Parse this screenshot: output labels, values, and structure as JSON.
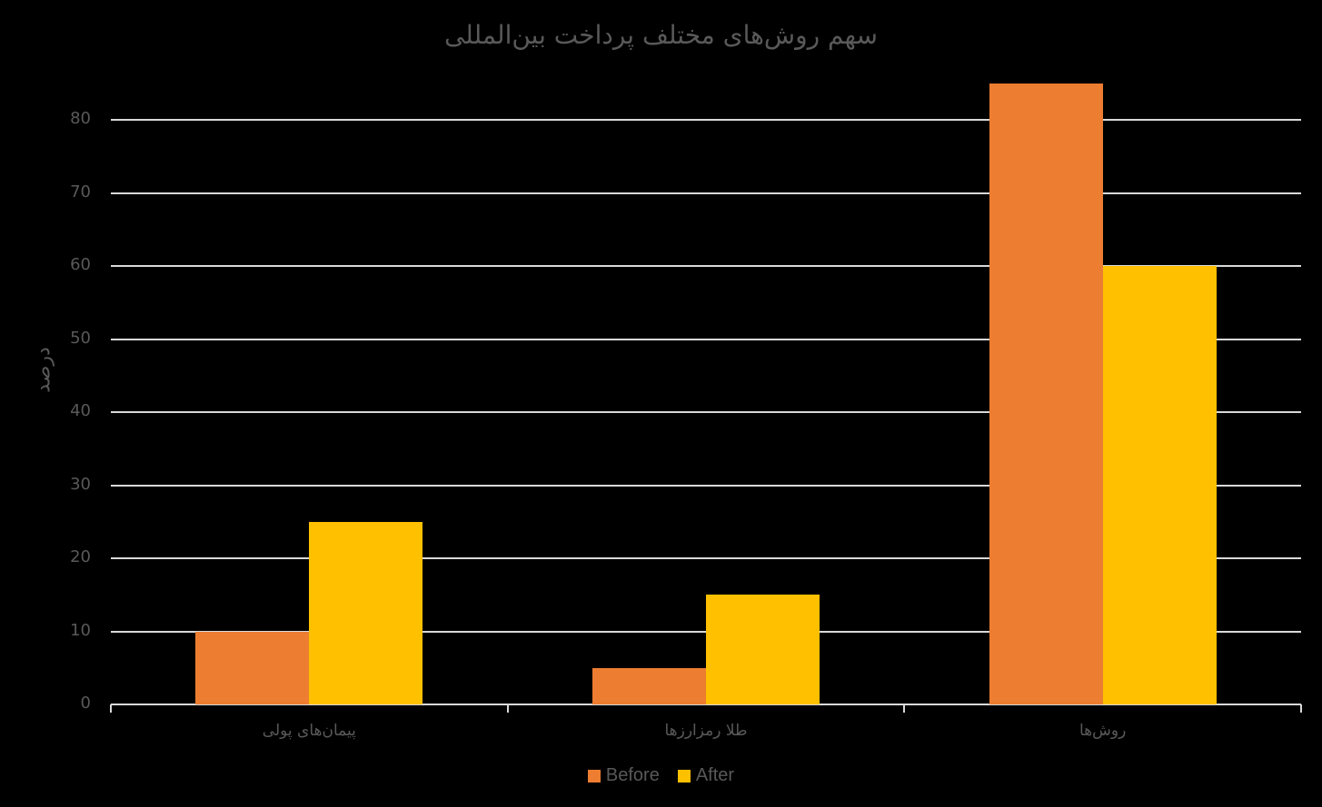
{
  "chart_data": {
    "type": "bar",
    "title": "سهم روش‌های مختلف پرداخت بین‌المللی",
    "xlabel": "",
    "ylabel": "درصد",
    "categories": [
      "پیمان‌های پولی",
      "طلا رمزارزها",
      "روش‌ها"
    ],
    "series": [
      {
        "name": "Before",
        "color": "#ED7D31",
        "values": [
          10,
          5,
          85
        ]
      },
      {
        "name": "After",
        "color": "#FFC000",
        "values": [
          25,
          15,
          60
        ]
      }
    ],
    "ylim": [
      0,
      90
    ],
    "yticks": [
      0,
      10,
      20,
      30,
      40,
      50,
      60,
      70,
      80
    ],
    "grid": true,
    "legend_position": "bottom"
  }
}
